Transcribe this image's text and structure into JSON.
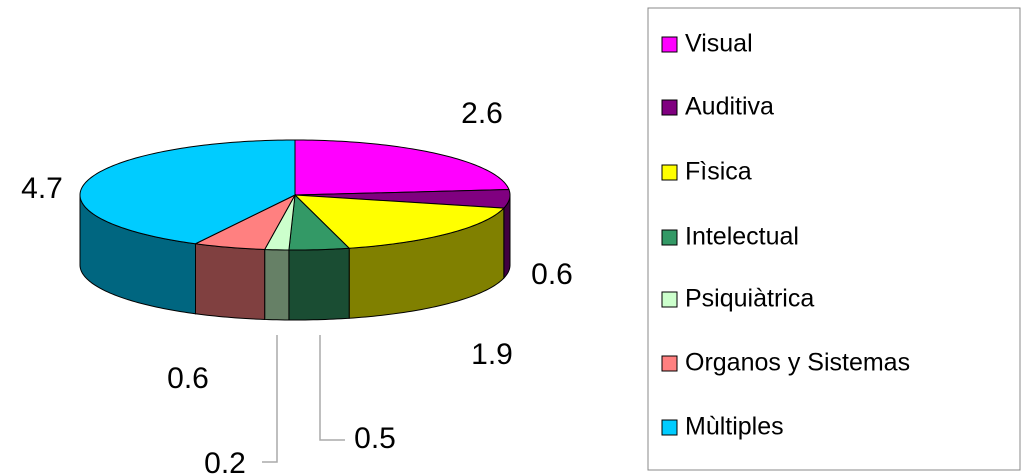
{
  "chart_data": {
    "type": "pie",
    "categories": [
      "Visual",
      "Auditiva",
      "Fìsica",
      "Intelectual",
      "Psiquiàtrica",
      "Organos y Sistemas",
      "Mùltiples"
    ],
    "values": [
      2.6,
      0.6,
      1.9,
      0.5,
      0.2,
      0.6,
      4.7
    ],
    "colors": [
      "#ff00ff",
      "#800080",
      "#ffff00",
      "#339966",
      "#ccffcc",
      "#ff8080",
      "#00ccff"
    ],
    "legend": "right"
  }
}
